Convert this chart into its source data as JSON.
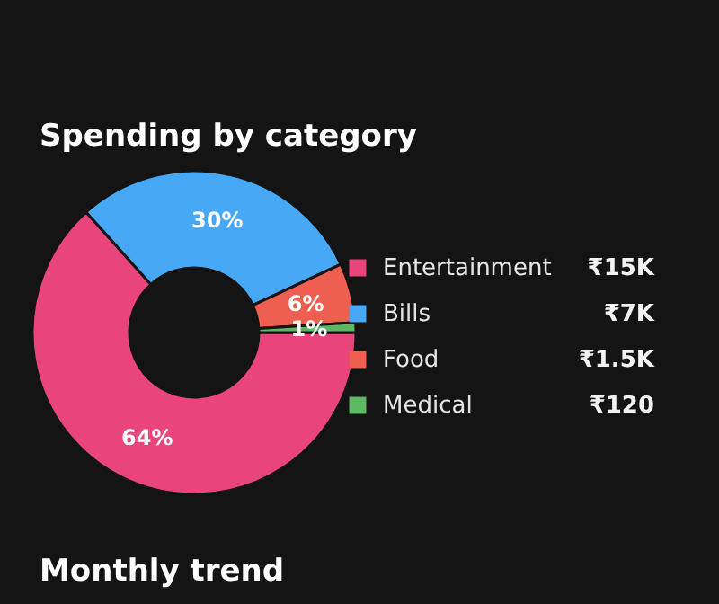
{
  "chart_data": {
    "type": "donut",
    "title": "Spending by category",
    "categories": [
      "Entertainment",
      "Bills",
      "Food",
      "Medical"
    ],
    "values": [
      64,
      30,
      6,
      1
    ],
    "value_labels": [
      "64%",
      "30%",
      "6%",
      "1%"
    ],
    "colors": [
      "#e9457c",
      "#47a9f6",
      "#ef5f4f",
      "#5cb962"
    ],
    "legend": "right",
    "annotations": [
      {
        "text": "₹15K",
        "x": "Entertainment"
      },
      {
        "text": "₹7K",
        "x": "Bills"
      },
      {
        "text": "₹1.5K",
        "x": "Food"
      },
      {
        "text": "₹120",
        "x": "Medical"
      },
      "Monthly trend"
    ]
  }
}
